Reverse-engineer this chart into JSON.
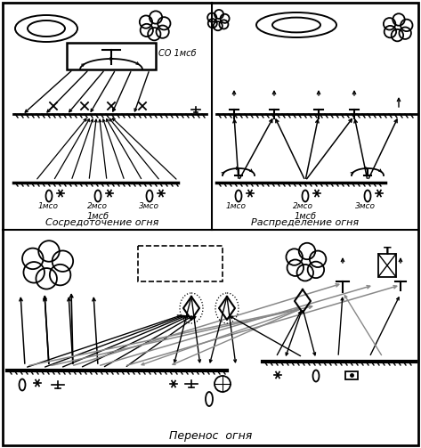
{
  "bg_color": "#ffffff",
  "line_color": "#000000",
  "gray_color": "#888888",
  "panel1_title": "CO 1мсб",
  "panel1_label1": "1мсо",
  "panel1_label2": "2мсо",
  "panel1_label3": "3мсо",
  "panel1_bottom": "1мсб",
  "panel1_caption": "Сосредоточение огня",
  "panel2_label1": "1мсо",
  "panel2_label2": "2мсо",
  "panel2_label3": "3мсо",
  "panel2_bottom": "1мсб",
  "panel2_caption": "Распределение огня",
  "panel3_caption": "Перенос  огня",
  "figsize": [
    4.73,
    5.03
  ],
  "dpi": 100
}
